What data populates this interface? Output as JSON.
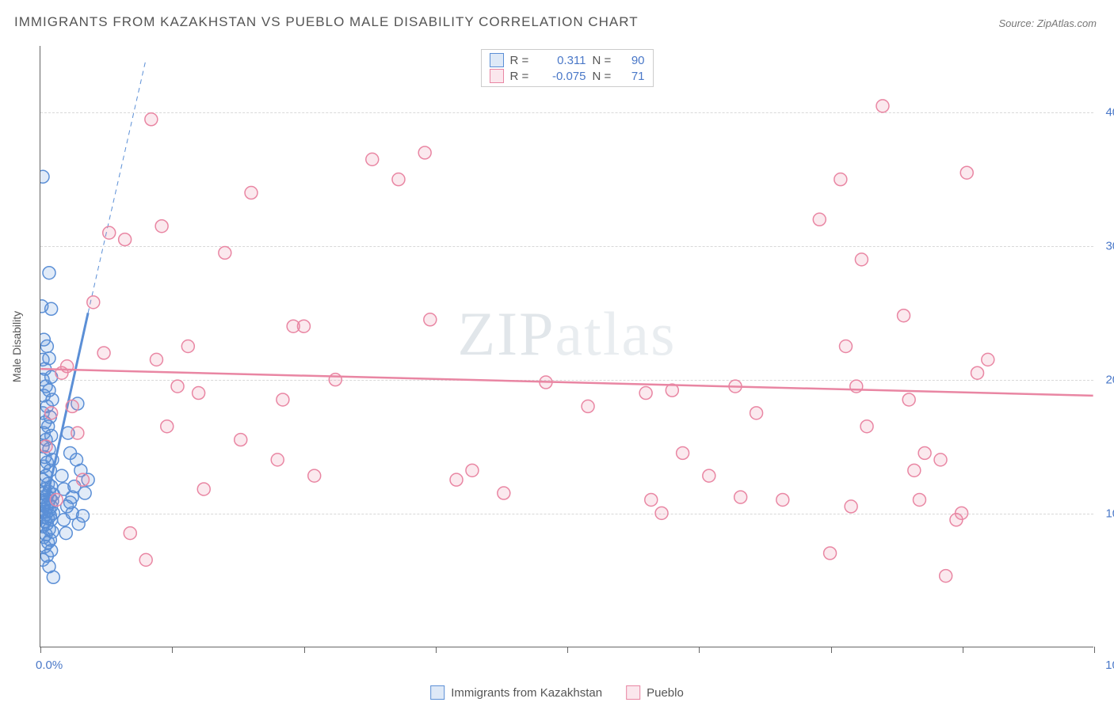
{
  "title": "IMMIGRANTS FROM KAZAKHSTAN VS PUEBLO MALE DISABILITY CORRELATION CHART",
  "source": "Source: ZipAtlas.com",
  "watermark_a": "ZIP",
  "watermark_b": "atlas",
  "chart": {
    "type": "scatter",
    "background_color": "#ffffff",
    "grid_color": "#d8d8d8",
    "axis_color": "#666666",
    "tick_label_color": "#4a78c8",
    "axis_title_color": "#555555",
    "yaxis_title": "Male Disability",
    "xlim": [
      0,
      100
    ],
    "ylim": [
      0,
      45
    ],
    "xticks": [
      0,
      12.5,
      25,
      37.5,
      50,
      62.5,
      75,
      87.5,
      100
    ],
    "xlabels": {
      "0": "0.0%",
      "100": "100.0%"
    },
    "yticks": [
      10,
      20,
      30,
      40
    ],
    "ylabels": {
      "10": "10.0%",
      "20": "20.0%",
      "30": "30.0%",
      "40": "40.0%"
    },
    "marker_radius": 8,
    "marker_fill_opacity": 0.18,
    "marker_stroke_width": 1.5,
    "series": [
      {
        "name": "Immigrants from Kazakhstan",
        "color": "#5b8fd6",
        "R": "0.311",
        "N": "90",
        "trend": {
          "x1": 0,
          "y1": 9,
          "x2": 4.5,
          "y2": 25,
          "width": 3,
          "dash": false
        },
        "trend_ext": {
          "x1": 4.5,
          "y1": 25,
          "x2": 10,
          "y2": 44,
          "width": 1,
          "dash": true
        },
        "points": [
          [
            0.2,
            35.2
          ],
          [
            0.8,
            28.0
          ],
          [
            0.1,
            25.5
          ],
          [
            1.0,
            25.3
          ],
          [
            0.3,
            23.0
          ],
          [
            0.6,
            22.5
          ],
          [
            0.2,
            21.5
          ],
          [
            0.8,
            21.6
          ],
          [
            0.4,
            20.8
          ],
          [
            1.0,
            20.2
          ],
          [
            0.2,
            20.0
          ],
          [
            0.5,
            19.5
          ],
          [
            0.8,
            19.2
          ],
          [
            0.3,
            18.8
          ],
          [
            1.1,
            18.5
          ],
          [
            0.6,
            18.0
          ],
          [
            0.2,
            17.5
          ],
          [
            0.9,
            17.2
          ],
          [
            0.4,
            16.8
          ],
          [
            0.7,
            16.5
          ],
          [
            0.3,
            16.0
          ],
          [
            1.0,
            15.8
          ],
          [
            0.5,
            15.5
          ],
          [
            0.2,
            15.0
          ],
          [
            0.8,
            14.8
          ],
          [
            0.4,
            14.2
          ],
          [
            1.1,
            14.0
          ],
          [
            0.6,
            13.8
          ],
          [
            0.3,
            13.5
          ],
          [
            0.9,
            13.2
          ],
          [
            0.5,
            12.8
          ],
          [
            0.2,
            12.5
          ],
          [
            0.7,
            12.2
          ],
          [
            1.0,
            12.0
          ],
          [
            0.4,
            11.8
          ],
          [
            0.8,
            11.6
          ],
          [
            0.3,
            11.5
          ],
          [
            1.2,
            11.4
          ],
          [
            0.6,
            11.3
          ],
          [
            0.2,
            11.2
          ],
          [
            0.9,
            11.1
          ],
          [
            0.5,
            11.0
          ],
          [
            1.1,
            10.9
          ],
          [
            0.4,
            10.8
          ],
          [
            0.7,
            10.7
          ],
          [
            0.3,
            10.6
          ],
          [
            1.0,
            10.5
          ],
          [
            0.6,
            10.4
          ],
          [
            0.2,
            10.3
          ],
          [
            0.8,
            10.2
          ],
          [
            0.4,
            10.1
          ],
          [
            1.2,
            10.0
          ],
          [
            0.5,
            9.9
          ],
          [
            0.9,
            9.8
          ],
          [
            0.3,
            9.7
          ],
          [
            0.7,
            9.6
          ],
          [
            1.0,
            9.5
          ],
          [
            0.4,
            9.4
          ],
          [
            0.6,
            9.2
          ],
          [
            0.2,
            9.0
          ],
          [
            0.8,
            8.8
          ],
          [
            1.1,
            8.6
          ],
          [
            0.5,
            8.4
          ],
          [
            0.3,
            8.2
          ],
          [
            0.9,
            8.0
          ],
          [
            0.7,
            7.8
          ],
          [
            0.4,
            7.5
          ],
          [
            1.0,
            7.2
          ],
          [
            0.6,
            6.8
          ],
          [
            0.2,
            6.5
          ],
          [
            0.8,
            6.0
          ],
          [
            1.2,
            5.2
          ],
          [
            3.5,
            18.2
          ],
          [
            2.8,
            14.5
          ],
          [
            3.2,
            12.0
          ],
          [
            2.5,
            10.5
          ],
          [
            4.0,
            9.8
          ],
          [
            2.2,
            11.8
          ],
          [
            3.8,
            13.2
          ],
          [
            2.6,
            16.0
          ],
          [
            3.0,
            10.0
          ],
          [
            4.2,
            11.5
          ],
          [
            2.4,
            8.5
          ],
          [
            3.6,
            9.2
          ],
          [
            2.0,
            12.8
          ],
          [
            3.4,
            14.0
          ],
          [
            2.8,
            10.8
          ],
          [
            4.5,
            12.5
          ],
          [
            2.2,
            9.5
          ],
          [
            3.0,
            11.2
          ]
        ]
      },
      {
        "name": "Pueblo",
        "color": "#e986a3",
        "R": "-0.075",
        "N": "71",
        "trend": {
          "x1": 0,
          "y1": 20.8,
          "x2": 100,
          "y2": 18.8,
          "width": 2.5,
          "dash": false
        },
        "points": [
          [
            2.0,
            20.5
          ],
          [
            3.0,
            18.0
          ],
          [
            3.5,
            16.0
          ],
          [
            4.0,
            12.5
          ],
          [
            0.5,
            15.0
          ],
          [
            1.5,
            11.0
          ],
          [
            5.0,
            25.8
          ],
          [
            6.5,
            31.0
          ],
          [
            8.0,
            30.5
          ],
          [
            10.5,
            39.5
          ],
          [
            11.0,
            21.5
          ],
          [
            11.5,
            31.5
          ],
          [
            13.0,
            19.5
          ],
          [
            14.0,
            22.5
          ],
          [
            15.0,
            19.0
          ],
          [
            15.5,
            11.8
          ],
          [
            17.5,
            29.5
          ],
          [
            19.0,
            15.5
          ],
          [
            20.0,
            34.0
          ],
          [
            22.5,
            14.0
          ],
          [
            23.0,
            18.5
          ],
          [
            24.0,
            24.0
          ],
          [
            25.0,
            24.0
          ],
          [
            26.0,
            12.8
          ],
          [
            31.5,
            36.5
          ],
          [
            34.0,
            35.0
          ],
          [
            36.5,
            37.0
          ],
          [
            37.0,
            24.5
          ],
          [
            39.5,
            12.5
          ],
          [
            41.0,
            13.2
          ],
          [
            44.0,
            11.5
          ],
          [
            57.5,
            19.0
          ],
          [
            58.0,
            11.0
          ],
          [
            59.0,
            10.0
          ],
          [
            60.0,
            19.2
          ],
          [
            61.0,
            14.5
          ],
          [
            63.5,
            12.8
          ],
          [
            66.5,
            11.2
          ],
          [
            66.0,
            19.5
          ],
          [
            70.5,
            11.0
          ],
          [
            74.0,
            32.0
          ],
          [
            75.0,
            7.0
          ],
          [
            76.5,
            22.5
          ],
          [
            76.0,
            35.0
          ],
          [
            77.0,
            10.5
          ],
          [
            77.5,
            19.5
          ],
          [
            78.0,
            29.0
          ],
          [
            78.5,
            16.5
          ],
          [
            80.0,
            40.5
          ],
          [
            82.0,
            24.8
          ],
          [
            82.5,
            18.5
          ],
          [
            83.0,
            13.2
          ],
          [
            83.5,
            11.0
          ],
          [
            84.0,
            14.5
          ],
          [
            85.5,
            14.0
          ],
          [
            86.0,
            5.3
          ],
          [
            87.0,
            9.5
          ],
          [
            87.5,
            10.0
          ],
          [
            88.0,
            35.5
          ],
          [
            89.0,
            20.5
          ],
          [
            90.0,
            21.5
          ],
          [
            8.5,
            8.5
          ],
          [
            10.0,
            6.5
          ],
          [
            1.0,
            17.5
          ],
          [
            2.5,
            21.0
          ],
          [
            6.0,
            22.0
          ],
          [
            12.0,
            16.5
          ],
          [
            28.0,
            20.0
          ],
          [
            48.0,
            19.8
          ],
          [
            52.0,
            18.0
          ],
          [
            68.0,
            17.5
          ]
        ]
      }
    ]
  },
  "legend_top": {
    "r_label": "R =",
    "n_label": "N ="
  }
}
